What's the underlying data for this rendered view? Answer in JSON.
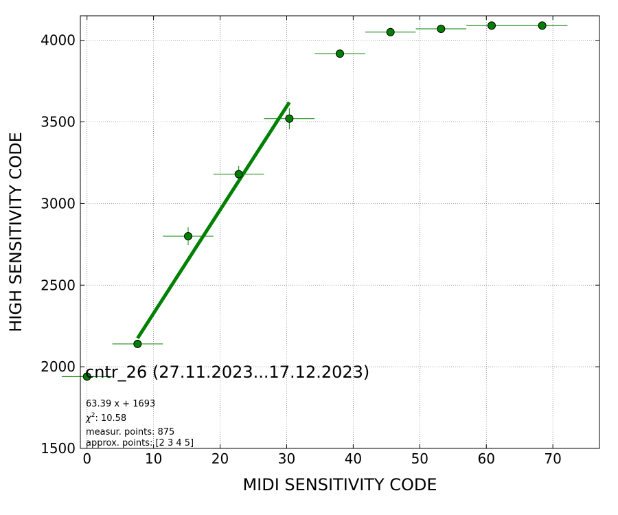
{
  "chart_data": {
    "type": "scatter",
    "title": "cntr_26 (27.11.2023...17.12.2023)",
    "xlabel": "MIDI SENSITIVITY CODE",
    "ylabel": "HIGH SENSITIVITY CODE",
    "xlim": [
      -1,
      77
    ],
    "ylim": [
      1500,
      4150
    ],
    "xticks": [
      0,
      10,
      20,
      30,
      40,
      50,
      60,
      70
    ],
    "yticks": [
      1500,
      2000,
      2500,
      3000,
      3500,
      4000
    ],
    "grid": true,
    "series": [
      {
        "color": "#008000",
        "points": [
          {
            "x": 0,
            "y": 1940,
            "xerr": 3.8,
            "yerr": 10
          },
          {
            "x": 7.6,
            "y": 2140,
            "xerr": 3.8,
            "yerr": 15
          },
          {
            "x": 15.2,
            "y": 2800,
            "xerr": 3.8,
            "yerr": 55
          },
          {
            "x": 22.8,
            "y": 3180,
            "xerr": 3.8,
            "yerr": 50
          },
          {
            "x": 30.4,
            "y": 3520,
            "xerr": 3.8,
            "yerr": 65
          },
          {
            "x": 38.0,
            "y": 3918,
            "xerr": 3.8,
            "yerr": 25
          },
          {
            "x": 45.6,
            "y": 4050,
            "xerr": 3.8,
            "yerr": 10
          },
          {
            "x": 53.2,
            "y": 4070,
            "xerr": 3.8,
            "yerr": 10
          },
          {
            "x": 60.8,
            "y": 4090,
            "xerr": 3.8,
            "yerr": 8
          },
          {
            "x": 68.4,
            "y": 4090,
            "xerr": 3.8,
            "yerr": 8
          }
        ]
      }
    ],
    "fit_line": {
      "color": "#008000",
      "slope": 63.39,
      "intercept": 1693,
      "x_range": [
        7.6,
        30.4
      ]
    },
    "annotations": {
      "equation": "63.39 x + 1693",
      "chi2_label": "χ",
      "chi2_sup": "2",
      "chi2_value": ": 10.58",
      "measur_points": "measur. points: 875",
      "approx_points": "approx. points: [2 3 4 5]"
    }
  }
}
